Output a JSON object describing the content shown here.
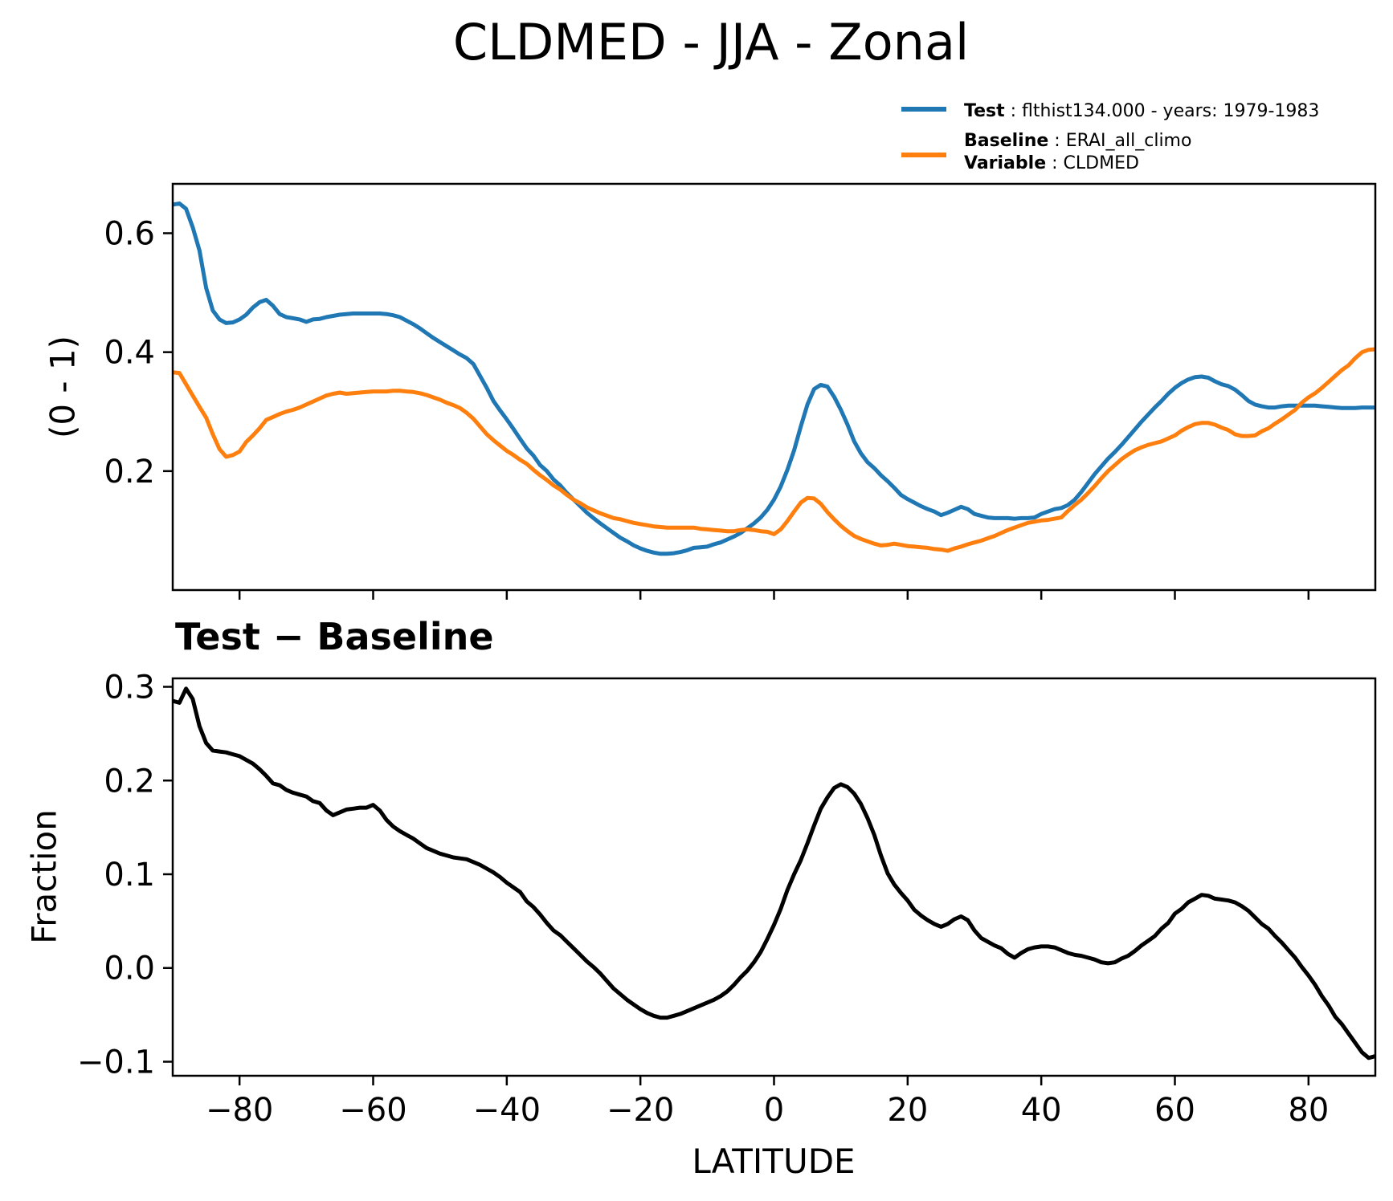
{
  "title": "CLDMED - JJA - Zonal",
  "colors": {
    "test_line": "#1f77b4",
    "baseline_line": "#ff7f0e",
    "diff_line": "#000000",
    "axis": "#000000",
    "background": "#ffffff"
  },
  "legend": {
    "rows": [
      {
        "bold": "Test",
        "rest": " : flthist134.000 - years: 1979-1983",
        "swatch": "test_line"
      },
      {
        "bold": "Baseline",
        "rest": " : ERAI_all_climo",
        "swatch": "baseline_line"
      },
      {
        "bold": "Variable",
        "rest": " : CLDMED",
        "swatch": ""
      }
    ]
  },
  "chart_data": [
    {
      "id": "zonal-mean",
      "type": "line",
      "title": "CLDMED - JJA - Zonal",
      "xlabel": "",
      "ylabel": "(0 - 1)",
      "xlim": [
        -90,
        90
      ],
      "ylim": [
        0.0,
        0.683
      ],
      "yticks": [
        0.2,
        0.4,
        0.6
      ],
      "ytick_labels": [
        "0.2",
        "0.4",
        "0.6"
      ],
      "xticks": [
        -80,
        -60,
        -40,
        -20,
        0,
        20,
        40,
        60,
        80
      ],
      "xtick_labels": [],
      "grid": false,
      "legend_position": "upper right outside",
      "x_start": -90,
      "x_step": 1,
      "series": [
        {
          "name": "Test",
          "color_key": "test_line",
          "values": [
            0.648,
            0.65,
            0.641,
            0.61,
            0.571,
            0.508,
            0.47,
            0.455,
            0.449,
            0.45,
            0.455,
            0.463,
            0.475,
            0.484,
            0.488,
            0.478,
            0.464,
            0.459,
            0.457,
            0.455,
            0.451,
            0.455,
            0.456,
            0.459,
            0.461,
            0.463,
            0.464,
            0.465,
            0.465,
            0.465,
            0.465,
            0.465,
            0.464,
            0.462,
            0.459,
            0.453,
            0.447,
            0.44,
            0.432,
            0.424,
            0.417,
            0.41,
            0.403,
            0.396,
            0.39,
            0.38,
            0.36,
            0.34,
            0.318,
            0.302,
            0.287,
            0.271,
            0.254,
            0.238,
            0.226,
            0.21,
            0.2,
            0.186,
            0.176,
            0.163,
            0.152,
            0.141,
            0.13,
            0.121,
            0.112,
            0.104,
            0.096,
            0.088,
            0.082,
            0.075,
            0.07,
            0.066,
            0.063,
            0.061,
            0.061,
            0.062,
            0.064,
            0.067,
            0.071,
            0.072,
            0.073,
            0.077,
            0.08,
            0.085,
            0.09,
            0.096,
            0.104,
            0.112,
            0.122,
            0.135,
            0.152,
            0.174,
            0.202,
            0.235,
            0.275,
            0.312,
            0.338,
            0.345,
            0.342,
            0.325,
            0.303,
            0.278,
            0.25,
            0.23,
            0.215,
            0.205,
            0.193,
            0.183,
            0.172,
            0.16,
            0.153,
            0.147,
            0.141,
            0.136,
            0.132,
            0.126,
            0.13,
            0.135,
            0.14,
            0.136,
            0.128,
            0.125,
            0.122,
            0.121,
            0.121,
            0.121,
            0.12,
            0.121,
            0.121,
            0.122,
            0.128,
            0.132,
            0.136,
            0.138,
            0.143,
            0.152,
            0.165,
            0.18,
            0.195,
            0.208,
            0.221,
            0.232,
            0.244,
            0.257,
            0.27,
            0.283,
            0.295,
            0.307,
            0.318,
            0.33,
            0.34,
            0.348,
            0.354,
            0.358,
            0.359,
            0.357,
            0.351,
            0.346,
            0.343,
            0.337,
            0.328,
            0.318,
            0.312,
            0.309,
            0.307,
            0.307,
            0.309,
            0.31,
            0.31,
            0.31,
            0.31,
            0.31,
            0.309,
            0.308,
            0.307,
            0.306,
            0.306,
            0.306,
            0.307,
            0.307,
            0.307
          ]
        },
        {
          "name": "Baseline",
          "color_key": "baseline_line",
          "values": [
            0.366,
            0.365,
            0.346,
            0.327,
            0.308,
            0.29,
            0.262,
            0.237,
            0.224,
            0.227,
            0.233,
            0.249,
            0.26,
            0.272,
            0.286,
            0.291,
            0.296,
            0.3,
            0.303,
            0.307,
            0.312,
            0.317,
            0.322,
            0.327,
            0.33,
            0.332,
            0.33,
            0.331,
            0.332,
            0.333,
            0.334,
            0.334,
            0.334,
            0.335,
            0.335,
            0.334,
            0.333,
            0.331,
            0.328,
            0.324,
            0.32,
            0.315,
            0.311,
            0.306,
            0.298,
            0.288,
            0.275,
            0.262,
            0.252,
            0.243,
            0.234,
            0.227,
            0.219,
            0.212,
            0.202,
            0.193,
            0.185,
            0.176,
            0.169,
            0.16,
            0.152,
            0.146,
            0.139,
            0.134,
            0.129,
            0.125,
            0.121,
            0.119,
            0.116,
            0.113,
            0.111,
            0.109,
            0.107,
            0.106,
            0.105,
            0.105,
            0.105,
            0.105,
            0.105,
            0.103,
            0.102,
            0.101,
            0.1,
            0.099,
            0.099,
            0.101,
            0.102,
            0.101,
            0.099,
            0.098,
            0.094,
            0.102,
            0.116,
            0.132,
            0.147,
            0.155,
            0.154,
            0.145,
            0.131,
            0.119,
            0.108,
            0.099,
            0.091,
            0.086,
            0.082,
            0.078,
            0.075,
            0.076,
            0.078,
            0.076,
            0.074,
            0.073,
            0.072,
            0.071,
            0.069,
            0.068,
            0.066,
            0.07,
            0.073,
            0.077,
            0.08,
            0.083,
            0.087,
            0.091,
            0.096,
            0.101,
            0.105,
            0.109,
            0.113,
            0.115,
            0.117,
            0.118,
            0.12,
            0.122,
            0.133,
            0.143,
            0.152,
            0.163,
            0.175,
            0.188,
            0.2,
            0.21,
            0.22,
            0.228,
            0.235,
            0.24,
            0.244,
            0.247,
            0.25,
            0.255,
            0.26,
            0.268,
            0.274,
            0.279,
            0.281,
            0.281,
            0.278,
            0.273,
            0.269,
            0.262,
            0.259,
            0.259,
            0.26,
            0.267,
            0.272,
            0.28,
            0.287,
            0.295,
            0.303,
            0.315,
            0.324,
            0.331,
            0.34,
            0.35,
            0.36,
            0.37,
            0.378,
            0.39,
            0.4,
            0.404,
            0.405
          ]
        }
      ]
    },
    {
      "id": "diff",
      "type": "line",
      "title": "Test − Baseline",
      "xlabel": "LATITUDE",
      "ylabel": "Fraction",
      "xlim": [
        -90,
        90
      ],
      "ylim": [
        -0.115,
        0.309
      ],
      "yticks": [
        -0.1,
        0.0,
        0.1,
        0.2,
        0.3
      ],
      "ytick_labels": [
        "−0.1",
        "0.0",
        "0.1",
        "0.2",
        "0.3"
      ],
      "xticks": [
        -80,
        -60,
        -40,
        -20,
        0,
        20,
        40,
        60,
        80
      ],
      "xtick_labels": [
        "−80",
        "−60",
        "−40",
        "−20",
        "0",
        "20",
        "40",
        "60",
        "80"
      ],
      "grid": false,
      "x_start": -90,
      "x_step": 1,
      "series": [
        {
          "name": "Test − Baseline",
          "color_key": "diff_line",
          "values": [
            0.285,
            0.283,
            0.298,
            0.287,
            0.258,
            0.24,
            0.232,
            0.231,
            0.23,
            0.228,
            0.226,
            0.222,
            0.218,
            0.212,
            0.205,
            0.197,
            0.195,
            0.19,
            0.187,
            0.185,
            0.183,
            0.178,
            0.176,
            0.168,
            0.163,
            0.166,
            0.169,
            0.17,
            0.171,
            0.171,
            0.174,
            0.168,
            0.158,
            0.151,
            0.146,
            0.142,
            0.138,
            0.133,
            0.128,
            0.125,
            0.122,
            0.12,
            0.118,
            0.117,
            0.116,
            0.113,
            0.11,
            0.106,
            0.102,
            0.097,
            0.091,
            0.086,
            0.081,
            0.071,
            0.065,
            0.057,
            0.048,
            0.04,
            0.035,
            0.028,
            0.021,
            0.014,
            0.007,
            0.001,
            -0.006,
            -0.014,
            -0.022,
            -0.028,
            -0.034,
            -0.039,
            -0.044,
            -0.048,
            -0.051,
            -0.053,
            -0.053,
            -0.051,
            -0.049,
            -0.046,
            -0.043,
            -0.04,
            -0.037,
            -0.034,
            -0.03,
            -0.025,
            -0.018,
            -0.01,
            -0.003,
            0.006,
            0.017,
            0.031,
            0.046,
            0.063,
            0.083,
            0.1,
            0.115,
            0.133,
            0.152,
            0.17,
            0.182,
            0.192,
            0.196,
            0.193,
            0.186,
            0.175,
            0.16,
            0.142,
            0.12,
            0.101,
            0.089,
            0.08,
            0.072,
            0.062,
            0.056,
            0.051,
            0.047,
            0.044,
            0.047,
            0.052,
            0.055,
            0.051,
            0.04,
            0.032,
            0.028,
            0.024,
            0.021,
            0.015,
            0.011,
            0.016,
            0.02,
            0.022,
            0.023,
            0.023,
            0.022,
            0.019,
            0.016,
            0.014,
            0.013,
            0.011,
            0.009,
            0.006,
            0.005,
            0.006,
            0.01,
            0.013,
            0.018,
            0.024,
            0.029,
            0.034,
            0.042,
            0.048,
            0.058,
            0.063,
            0.07,
            0.074,
            0.078,
            0.077,
            0.074,
            0.073,
            0.072,
            0.07,
            0.066,
            0.061,
            0.054,
            0.047,
            0.042,
            0.034,
            0.027,
            0.019,
            0.011,
            0.001,
            -0.008,
            -0.018,
            -0.03,
            -0.04,
            -0.052,
            -0.06,
            -0.07,
            -0.08,
            -0.09,
            -0.096,
            -0.094
          ]
        }
      ]
    }
  ]
}
